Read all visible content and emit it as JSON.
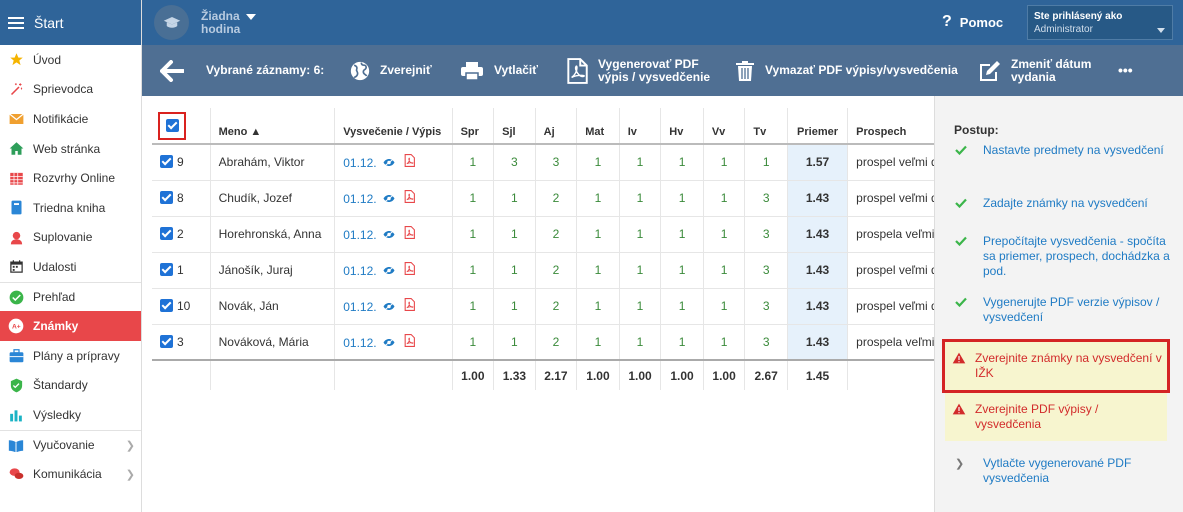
{
  "sidebar": {
    "title": "Štart",
    "items": [
      {
        "label": "Úvod",
        "icon": "star-icon"
      },
      {
        "label": "Sprievodca",
        "icon": "wand-icon"
      },
      {
        "label": "Notifikácie",
        "icon": "envelope-icon"
      },
      {
        "label": "Web stránka",
        "icon": "home-icon"
      },
      {
        "label": "Rozvrhy Online",
        "icon": "calendar-grid-icon"
      },
      {
        "label": "Triedna kniha",
        "icon": "book-icon"
      },
      {
        "label": "Suplovanie",
        "icon": "person-icon"
      },
      {
        "label": "Udalosti",
        "icon": "calendar-icon"
      },
      {
        "label": "Prehľad",
        "icon": "check-circle-icon"
      },
      {
        "label": "Známky",
        "icon": "grade-icon"
      },
      {
        "label": "Plány a prípravy",
        "icon": "briefcase-icon"
      },
      {
        "label": "Štandardy",
        "icon": "shield-icon"
      },
      {
        "label": "Výsledky",
        "icon": "bar-chart-icon"
      },
      {
        "label": "Vyučovanie",
        "icon": "open-book-icon"
      },
      {
        "label": "Komunikácia",
        "icon": "chat-icon"
      }
    ]
  },
  "header": {
    "hodina_line1": "Žiadna",
    "hodina_line2": "hodina",
    "help": "Pomoc",
    "user_line1": "Ste prihlásený ako",
    "user_line2": "Administrator"
  },
  "toolbar": {
    "selected": "Vybrané záznamy: 6:",
    "publish": "Zverejniť",
    "print": "Vytlačiť",
    "gen_pdf_1": "Vygenerovať PDF",
    "gen_pdf_2": "výpis / vysvedčenie",
    "delete_pdf": "Vymazať PDF výpisy/vysvedčenia",
    "change_date_1": "Zmeniť dátum",
    "change_date_2": "vydania",
    "more": "•••"
  },
  "table": {
    "headers": [
      "Meno ▲",
      "Vysvečenie / Výpis",
      "Spr",
      "Sjl",
      "Aj",
      "Mat",
      "Iv",
      "Hv",
      "Vv",
      "Tv",
      "Priemer",
      "Prospech"
    ],
    "rows": [
      {
        "num": "9",
        "name": "Abrahám, Viktor",
        "date": "01.12.",
        "grades": [
          "1",
          "3",
          "3",
          "1",
          "1",
          "1",
          "1",
          "1"
        ],
        "avg": "1.57",
        "result": "prospel veľmi dobre"
      },
      {
        "num": "8",
        "name": "Chudík, Jozef",
        "date": "01.12.",
        "grades": [
          "1",
          "1",
          "2",
          "1",
          "1",
          "1",
          "1",
          "3"
        ],
        "avg": "1.43",
        "result": "prospel veľmi dobre"
      },
      {
        "num": "2",
        "name": "Horehronská, Anna",
        "date": "01.12.",
        "grades": [
          "1",
          "1",
          "2",
          "1",
          "1",
          "1",
          "1",
          "3"
        ],
        "avg": "1.43",
        "result": "prospela veľmi dobre"
      },
      {
        "num": "1",
        "name": "Jánošík, Juraj",
        "date": "01.12.",
        "grades": [
          "1",
          "1",
          "2",
          "1",
          "1",
          "1",
          "1",
          "3"
        ],
        "avg": "1.43",
        "result": "prospel veľmi dobre"
      },
      {
        "num": "10",
        "name": "Novák, Ján",
        "date": "01.12.",
        "grades": [
          "1",
          "1",
          "2",
          "1",
          "1",
          "1",
          "1",
          "3"
        ],
        "avg": "1.43",
        "result": "prospel veľmi dobre"
      },
      {
        "num": "3",
        "name": "Nováková, Mária",
        "date": "01.12.",
        "grades": [
          "1",
          "1",
          "2",
          "1",
          "1",
          "1",
          "1",
          "3"
        ],
        "avg": "1.43",
        "result": "prospela veľmi dobre"
      }
    ],
    "totals": [
      "1.00",
      "1.33",
      "2.17",
      "1.00",
      "1.00",
      "1.00",
      "1.00",
      "2.67"
    ],
    "total_avg": "1.45"
  },
  "panel": {
    "title": "Postup:",
    "steps": [
      {
        "label": "Nastavte predmety na vysvedčení",
        "state": "done"
      },
      {
        "label": "Zadajte známky na vysvedčení",
        "state": "done"
      },
      {
        "label": "Prepočítajte vysvedčenia - spočíta sa priemer, prospech, dochádzka a pod.",
        "state": "done"
      },
      {
        "label": "Vygenerujte PDF verzie výpisov / vysvedčení",
        "state": "done"
      },
      {
        "label": "Zverejnite známky na vysvedčení v IŽK",
        "state": "warn"
      },
      {
        "label": "Zverejnite PDF výpisy / vysvedčenia",
        "state": "warn"
      },
      {
        "label": "Vytlačte vygenerované PDF vysvedčenia",
        "state": "todo"
      }
    ]
  }
}
